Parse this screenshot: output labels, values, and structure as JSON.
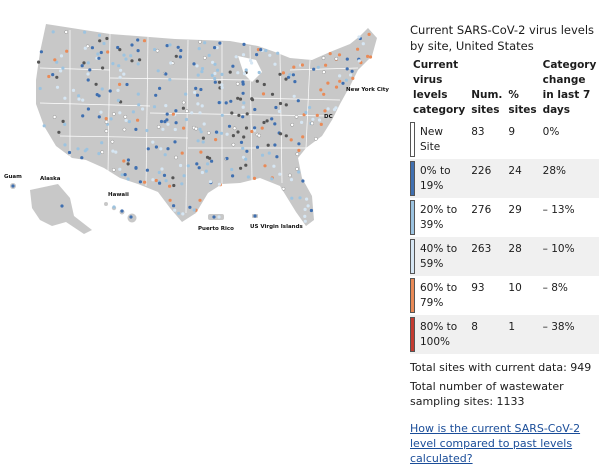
{
  "map": {
    "labels": {
      "new_york_city": "New York City",
      "dc": "DC",
      "guam": "Guam",
      "alaska": "Alaska",
      "hawaii": "Hawaii",
      "puerto_rico": "Puerto Rico",
      "usvi": "US Virgin Islands"
    },
    "colors": {
      "land": "#c8c8c8",
      "border": "#ffffff",
      "new_site": "#ffffff",
      "cat_0_19": "#3f6fb0",
      "cat_20_39": "#9cc3e0",
      "cat_40_59": "#d6e6f3",
      "cat_60_79": "#e98a57",
      "cat_80_100": "#c43b30",
      "no_recent": "#555555"
    }
  },
  "panel": {
    "title": "Current SARS-CoV-2 virus levels by site, United States",
    "headers": {
      "category": "Current virus levels category",
      "num_sites": "Num. sites",
      "pct_sites": "% sites",
      "change": "Category change in last 7 days"
    },
    "rows": [
      {
        "category": "New Site",
        "num": "83",
        "pct": "9",
        "change": "0%",
        "color": "#ffffff"
      },
      {
        "category": "0% to 19%",
        "num": "226",
        "pct": "24",
        "change": "28%",
        "color": "#3f6fb0"
      },
      {
        "category": "20% to 39%",
        "num": "276",
        "pct": "29",
        "change": "– 13%",
        "color": "#9cc3e0"
      },
      {
        "category": "40% to 59%",
        "num": "263",
        "pct": "28",
        "change": "– 10%",
        "color": "#d6e6f3"
      },
      {
        "category": "60% to 79%",
        "num": "93",
        "pct": "10",
        "change": "– 8%",
        "color": "#e98a57"
      },
      {
        "category": "80% to 100%",
        "num": "8",
        "pct": "1",
        "change": "– 38%",
        "color": "#c43b30"
      }
    ],
    "total_current": "Total sites with current data: 949",
    "total_sampling": "Total number of wastewater sampling sites: 1133",
    "link_text": "How is the current SARS-CoV-2 level compared to past levels calculated?"
  }
}
